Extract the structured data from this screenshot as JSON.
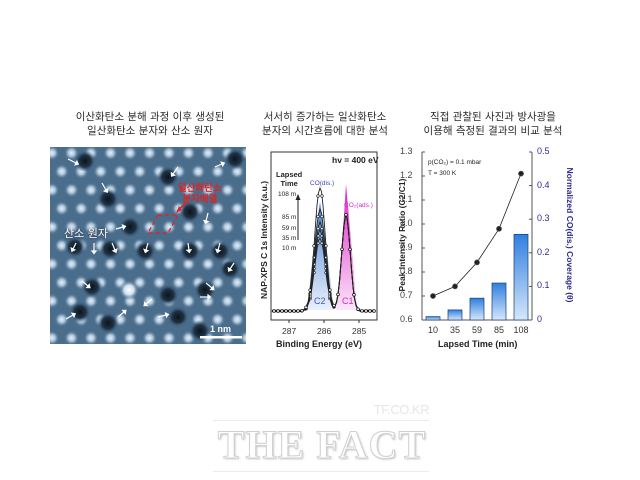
{
  "panels": [
    {
      "heading_line1": "이산화탄소 분해 과정 이후 생성된",
      "heading_line2": "일산화탄소 분자와 산소 원자",
      "image": {
        "type": "STM micrograph",
        "label_oxygen": "산소 원자",
        "label_co_line1": "일산화탄소",
        "label_co_line2": "분자배열",
        "scale_bar": "1 nm",
        "colors": {
          "background": "#4c6f8e",
          "bright_spot": "#dbe8f3",
          "dark_spot": "#101a24",
          "annotation": "#d8262a",
          "arrow": "#ffffff"
        }
      }
    },
    {
      "heading_line1": "서서히 증가하는 일산화탄소",
      "heading_line2": "분자의 시간흐름에 대한 분석"
    },
    {
      "heading_line1": "직접 관찰된 사진과 방사광을",
      "heading_line2": "이용해 측정된 결과의 비교 분석"
    }
  ],
  "watermark": {
    "site": "TF.CO.KR",
    "brand": "THE FACT"
  },
  "chart_data": [
    {
      "type": "line",
      "title": "hv = 400 eV",
      "xlabel": "Binding Energy (eV)",
      "ylabel": "NAP-XPS C 1s Intensity (a.u.)",
      "x_ticks": [
        "287",
        "286",
        "285"
      ],
      "xlim": [
        287.5,
        284.6
      ],
      "x_reversed": true,
      "legend_title_line1": "Lapsed",
      "legend_title_line2": "Time",
      "series_labels": [
        "108 m",
        "85 m",
        "59 m",
        "35 m",
        "10 m"
      ],
      "annotations": {
        "co_peak": "CO(dis.)",
        "co2_peak": "CO₂(ads.)",
        "c2": "C2",
        "c1": "C1"
      },
      "peaks": [
        {
          "name": "C2",
          "center_eV": 285.9,
          "color": "#5b8fd8"
        },
        {
          "name": "C1",
          "center_eV": 285.45,
          "color": "#e040d0"
        }
      ],
      "series": [
        {
          "name": "10 m",
          "co_peak_rel": 0.56,
          "co2_peak_rel": 0.74
        },
        {
          "name": "35 m",
          "co_peak_rel": 0.62,
          "co2_peak_rel": 0.74
        },
        {
          "name": "59 m",
          "co_peak_rel": 0.68,
          "co2_peak_rel": 0.74
        },
        {
          "name": "85 m",
          "co_peak_rel": 0.78,
          "co2_peak_rel": 0.74
        },
        {
          "name": "108 m",
          "co_peak_rel": 0.95,
          "co2_peak_rel": 0.74
        }
      ]
    },
    {
      "type": "bar+line",
      "xlabel": "Lapsed Time (min)",
      "ylabel_left": "Peak Intensity Ratio (C2/C1)",
      "ylabel_right": "Normalized CO(dis.) Coverage (θ)",
      "categories": [
        "10",
        "35",
        "59",
        "85",
        "108"
      ],
      "ylim_left": [
        0.6,
        1.3
      ],
      "y_ticks_left": [
        "0.6",
        "0.7",
        "0.8",
        "0.9",
        "1.0",
        "1.1",
        "1.2",
        "1.3"
      ],
      "ylim_right": [
        0,
        0.5
      ],
      "y_ticks_right": [
        "0",
        "0.1",
        "0.2",
        "0.3",
        "0.4",
        "0.5"
      ],
      "annotation_line1": "p(CO₂) = 0.1 mbar",
      "annotation_line2": "T = 300 K",
      "series": [
        {
          "name": "Peak Intensity Ratio (C2/C1)",
          "type": "line",
          "axis": "left",
          "values": [
            0.7,
            0.74,
            0.84,
            0.98,
            1.21
          ],
          "color": "#222222"
        },
        {
          "name": "Normalized CO(dis.) Coverage",
          "type": "bar",
          "axis": "right",
          "values": [
            0.01,
            0.03,
            0.065,
            0.11,
            0.255
          ],
          "color": "#3a86e0"
        }
      ],
      "colors": {
        "right_axis_text": "#2b2b8f"
      }
    }
  ]
}
